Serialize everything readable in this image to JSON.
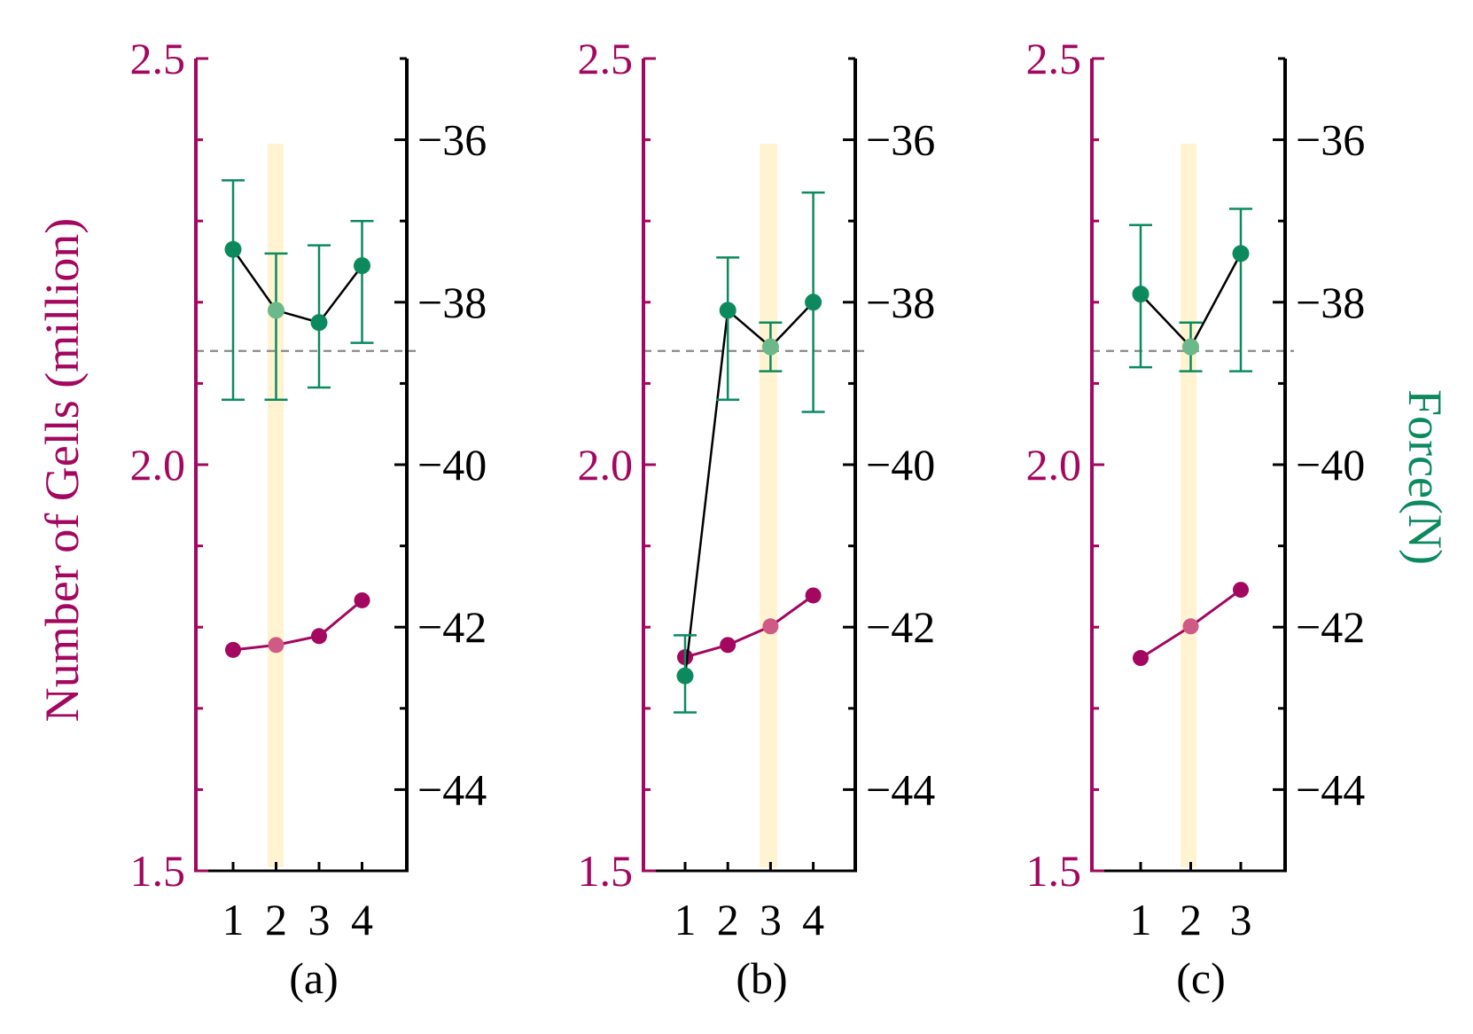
{
  "colors": {
    "cells": "#a3075f",
    "cells_highlight": "#cf5a86",
    "force": "#0c8a5d",
    "force_highlight": "#6bb88a",
    "force_line": "#000000",
    "highlight_band": "#fff3d2",
    "reference_line": "#8a8a8a",
    "right_axis": "#000000"
  },
  "chart_data": {
    "type": "line",
    "left_axis": {
      "label": "Number of Gells (million)",
      "ylim": [
        1.5,
        2.5
      ],
      "ticks": [
        1.5,
        2.0,
        2.5
      ],
      "tick_labels": [
        "1.5",
        "2.0",
        "2.5"
      ]
    },
    "right_axis": {
      "label": "Force(N)",
      "ylim": [
        -45,
        -35
      ],
      "ticks": [
        -36,
        -38,
        -40,
        -42,
        -44
      ],
      "tick_labels": [
        "−36",
        "−38",
        "−40",
        "−42",
        "−44"
      ]
    },
    "reference_force": -38.6,
    "panels": [
      {
        "label": "(a)",
        "x": [
          1,
          2,
          3,
          4
        ],
        "x_tick_labels": [
          "1",
          "2",
          "3",
          "4"
        ],
        "highlight_x": 2,
        "cells": [
          1.772,
          1.778,
          1.789,
          1.833
        ],
        "force": [
          -37.35,
          -38.1,
          -38.25,
          -37.55
        ],
        "force_err": [
          [
            -36.5,
            -39.2
          ],
          [
            -37.4,
            -39.2
          ],
          [
            -37.3,
            -39.05
          ],
          [
            -37.0,
            -38.5
          ]
        ]
      },
      {
        "label": "(b)",
        "x": [
          1,
          2,
          3,
          4
        ],
        "x_tick_labels": [
          "1",
          "2",
          "3",
          "4"
        ],
        "highlight_x": 3,
        "cells": [
          1.763,
          1.778,
          1.801,
          1.839
        ],
        "force": [
          -42.6,
          -38.1,
          -38.55,
          -38.0
        ],
        "force_err": [
          [
            -42.1,
            -43.05
          ],
          [
            -37.45,
            -39.2
          ],
          [
            -38.25,
            -38.85
          ],
          [
            -36.65,
            -39.35
          ]
        ]
      },
      {
        "label": "(c)",
        "x": [
          1,
          2,
          3
        ],
        "x_tick_labels": [
          "1",
          "2",
          "3"
        ],
        "highlight_x": 2,
        "cells": [
          1.762,
          1.801,
          1.846
        ],
        "force": [
          -37.9,
          -38.55,
          -37.4
        ],
        "force_err": [
          [
            -37.05,
            -38.8
          ],
          [
            -38.25,
            -38.85
          ],
          [
            -36.85,
            -38.85
          ]
        ]
      }
    ]
  }
}
